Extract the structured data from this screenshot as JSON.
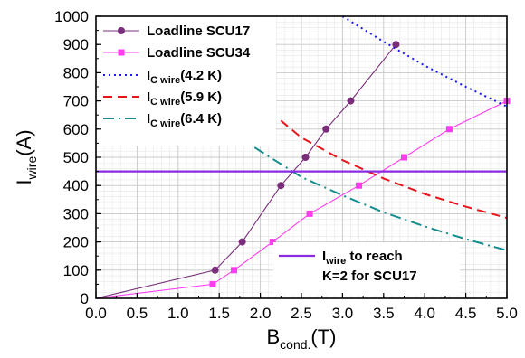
{
  "chart_data": {
    "type": "line",
    "xlabel": {
      "main": "B",
      "sub": "cond.",
      "unit": "(T)"
    },
    "ylabel": {
      "main": "I",
      "sub": "wire",
      "unit": "(A)"
    },
    "xlim": [
      0,
      5
    ],
    "ylim": [
      0,
      1000
    ],
    "xticks": [
      "0.0",
      "0.5",
      "1.0",
      "1.5",
      "2.0",
      "2.5",
      "3.0",
      "3.5",
      "4.0",
      "4.5",
      "5.0"
    ],
    "yticks": [
      "0",
      "100",
      "200",
      "300",
      "400",
      "500",
      "600",
      "700",
      "800",
      "900",
      "1000"
    ],
    "grid": true,
    "legend_position": "top-left",
    "series": [
      {
        "name": "Loadline SCU17",
        "style": "solid",
        "marker": "circle",
        "color": "#7a2d7a",
        "x": [
          0,
          1.45,
          1.78,
          2.25,
          2.55,
          2.8,
          3.1,
          3.65
        ],
        "y": [
          0,
          100,
          200,
          400,
          500,
          600,
          700,
          900
        ]
      },
      {
        "name": "Loadline SCU34",
        "style": "solid",
        "marker": "square",
        "color": "#ff3cf0",
        "x": [
          0,
          1.42,
          1.68,
          2.15,
          2.6,
          3.2,
          3.75,
          4.3,
          5.0
        ],
        "y": [
          0,
          50,
          100,
          200,
          300,
          400,
          500,
          600,
          700
        ]
      },
      {
        "name": "I",
        "name_sub": "C wire",
        "name_rest": "(4.2 K)",
        "style": "dotted",
        "color": "#1a1aff",
        "x": [
          3.0,
          3.5,
          4.0,
          4.5,
          5.0
        ],
        "y": [
          1000,
          910,
          825,
          750,
          680
        ]
      },
      {
        "name": "I",
        "name_sub": "C wire",
        "name_rest": "(5.9 K)",
        "style": "dashed",
        "color": "#e8141a",
        "x": [
          2.25,
          2.5,
          3.0,
          3.5,
          4.0,
          4.5,
          5.0
        ],
        "y": [
          630,
          570,
          490,
          425,
          370,
          325,
          285
        ]
      },
      {
        "name": "I",
        "name_sub": "C wire",
        "name_rest": "(6.4 K)",
        "style": "dashdot",
        "color": "#138d8d",
        "x": [
          1.93,
          2.5,
          3.0,
          3.5,
          4.0,
          4.5,
          5.0
        ],
        "y": [
          535,
          430,
          365,
          305,
          255,
          210,
          170
        ]
      },
      {
        "name": "I",
        "name_sub": "wire",
        "name_rest": " to reach",
        "name_line2": "K=2 for SCU17",
        "style": "solid",
        "color": "#8a2be2",
        "x": [
          0,
          5
        ],
        "y": [
          450,
          450
        ]
      }
    ]
  }
}
